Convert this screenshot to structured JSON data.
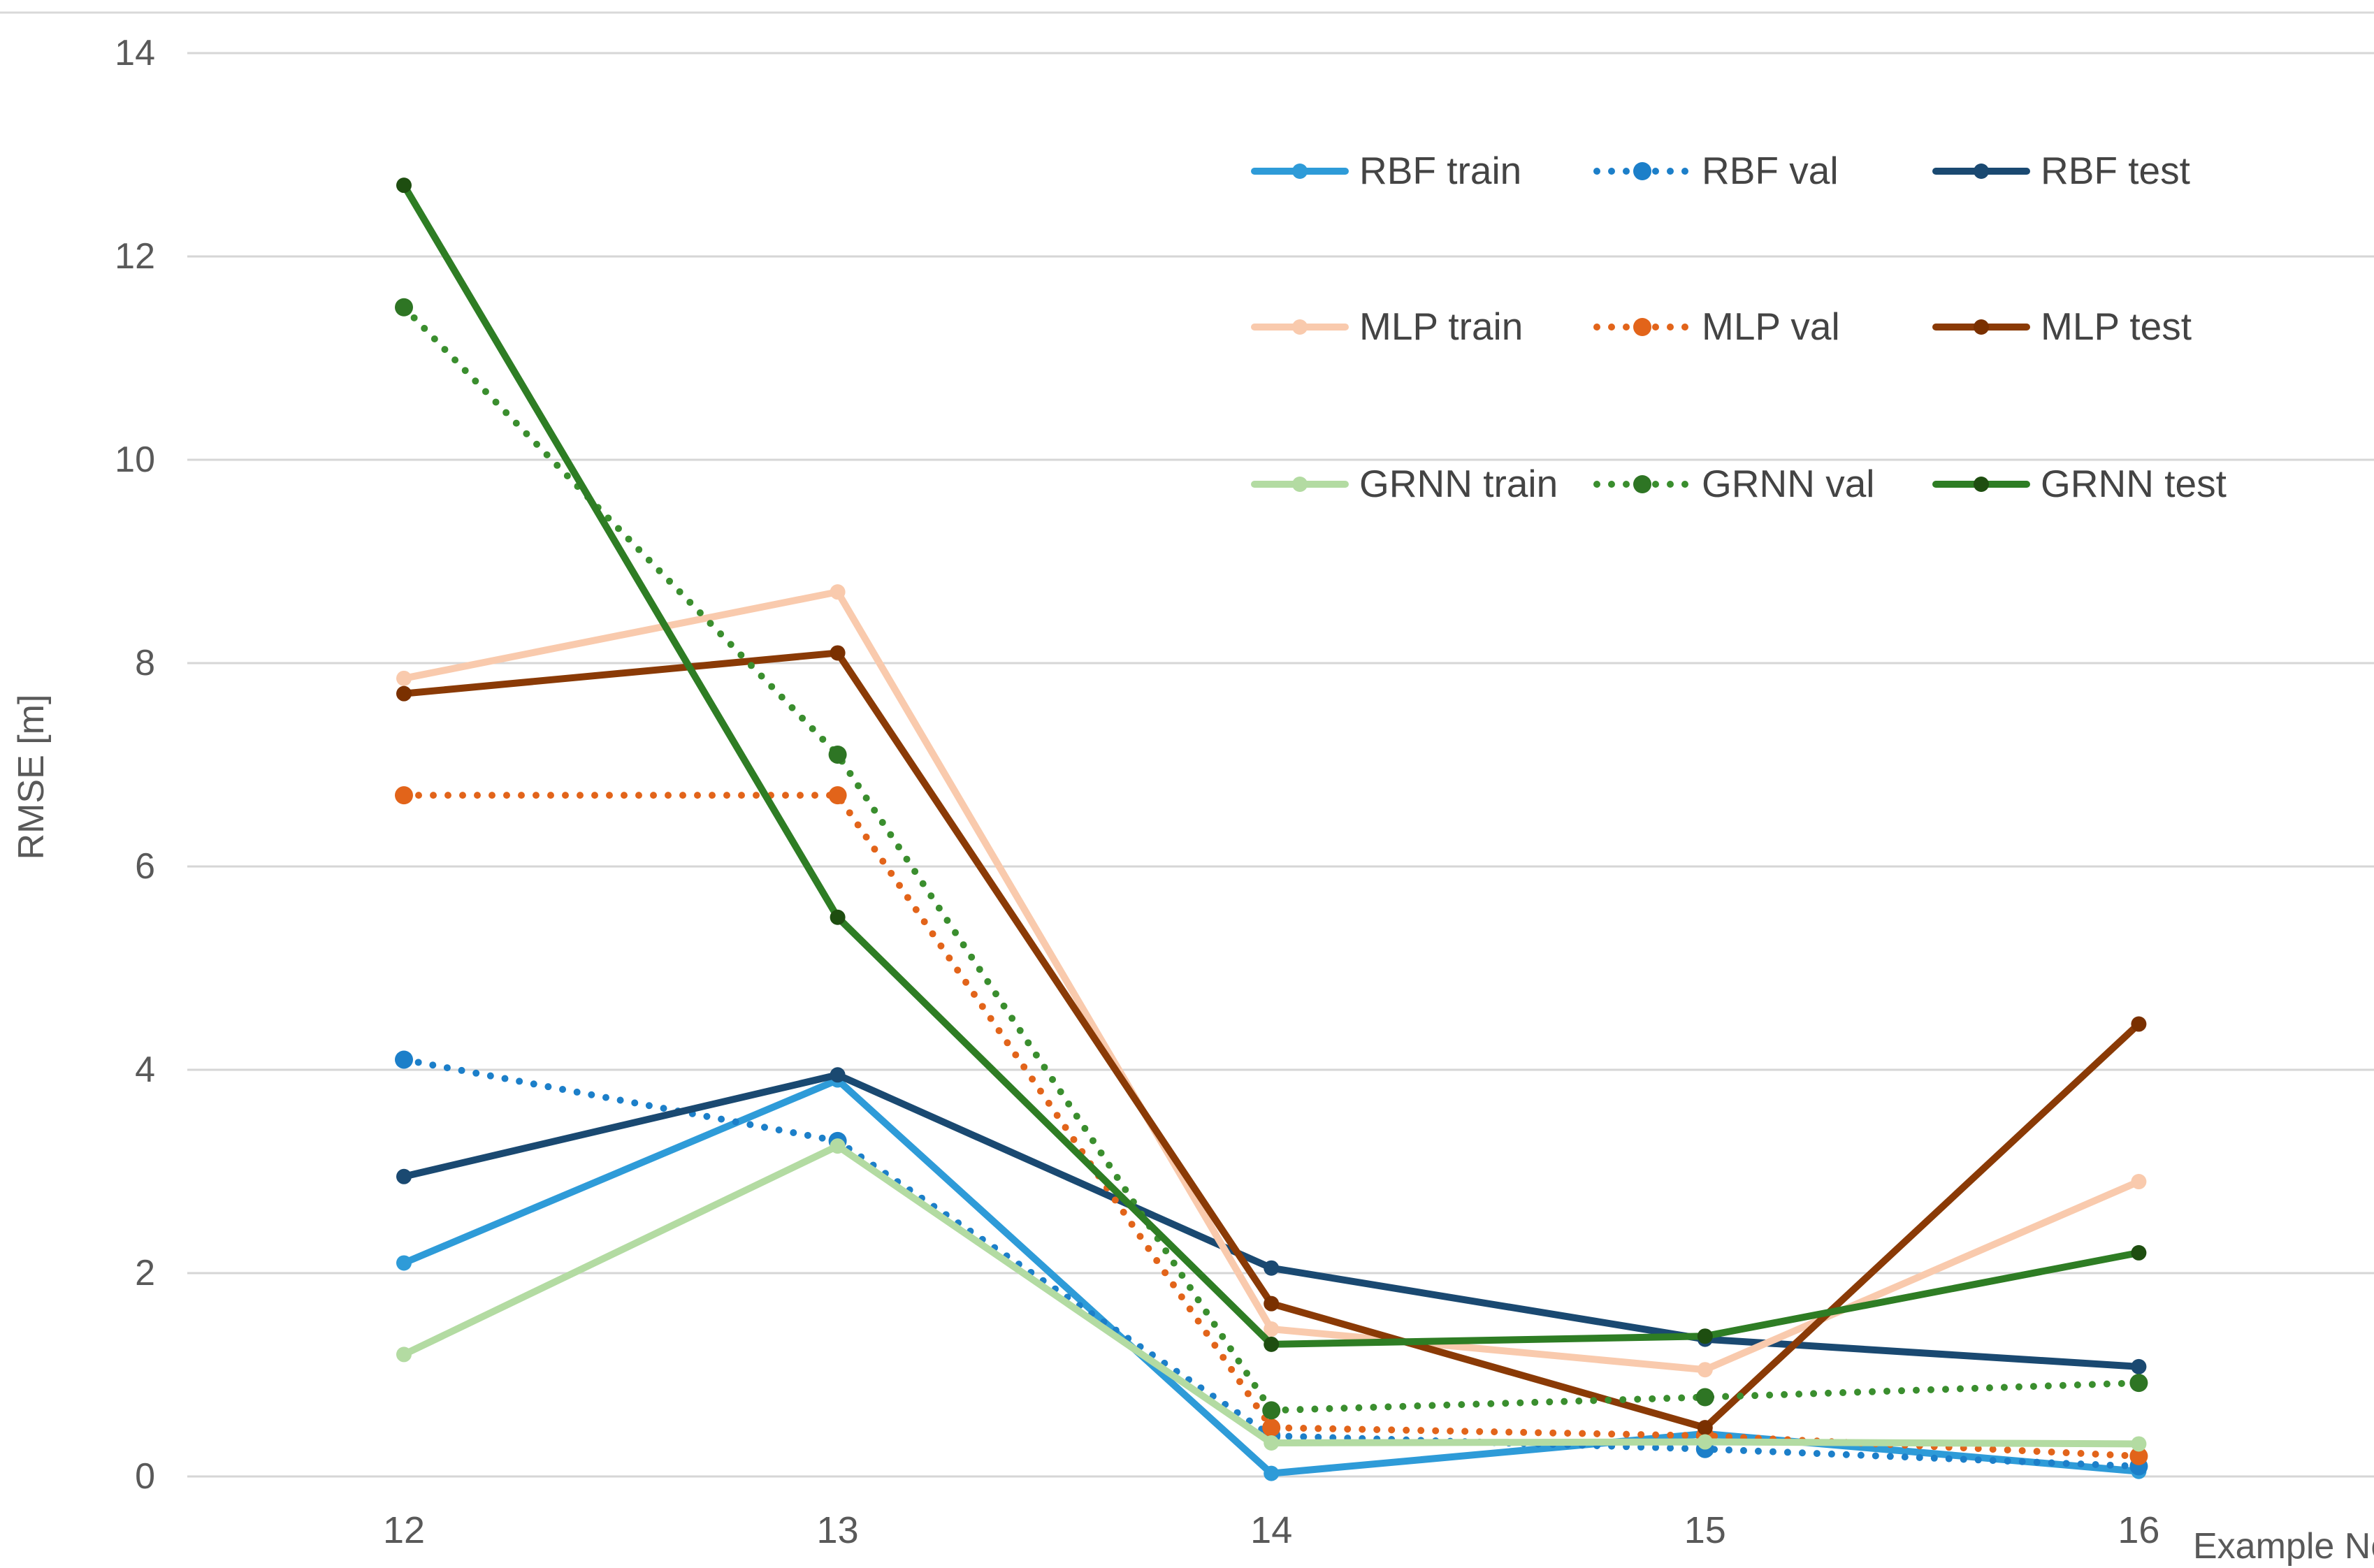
{
  "chart_data": {
    "type": "line",
    "title": "",
    "xlabel": "Example No",
    "ylabel": "RMSE [m]",
    "x": [
      12,
      13,
      14,
      15,
      16
    ],
    "xticks": [
      "12",
      "13",
      "14",
      "15",
      "16"
    ],
    "yticks": [
      "0",
      "2",
      "4",
      "6",
      "8",
      "10",
      "12",
      "14"
    ],
    "ylim": [
      0,
      14
    ],
    "grid": "horizontal",
    "legend_position": "top-right-inside",
    "series": [
      {
        "name": "RBF train",
        "style": "solid",
        "color": "#2E9BD8",
        "marker_color": "#2E9BD8",
        "values": [
          2.1,
          3.9,
          0.03,
          0.42,
          0.05
        ]
      },
      {
        "name": "RBF val",
        "style": "dotted",
        "color": "#1C7FC9",
        "marker_color": "#1C7FC9",
        "values": [
          4.1,
          3.3,
          0.4,
          0.27,
          0.1
        ]
      },
      {
        "name": "RBF test",
        "style": "solid",
        "color": "#1A4971",
        "marker_color": "#1A4971",
        "values": [
          2.95,
          3.95,
          2.05,
          1.35,
          1.08
        ]
      },
      {
        "name": "MLP train",
        "style": "solid",
        "color": "#F9CAAD",
        "marker_color": "#F9CAAD",
        "values": [
          7.85,
          8.7,
          1.45,
          1.05,
          2.9
        ]
      },
      {
        "name": "MLP val",
        "style": "dotted",
        "color": "#E2641A",
        "marker_color": "#E2641A",
        "values": [
          6.7,
          6.7,
          0.48,
          0.4,
          0.2
        ]
      },
      {
        "name": "MLP test",
        "style": "solid",
        "color": "#8A3A06",
        "marker_color": "#7A3000",
        "values": [
          7.7,
          8.1,
          1.7,
          0.48,
          4.45
        ]
      },
      {
        "name": "GRNN train",
        "style": "solid",
        "color": "#B3DBA2",
        "marker_color": "#B3DBA2",
        "values": [
          1.2,
          3.25,
          0.33,
          0.34,
          0.32
        ]
      },
      {
        "name": "GRNN val",
        "style": "dotted",
        "color": "#3A8E2E",
        "marker_color": "#2E7524",
        "values": [
          11.5,
          7.1,
          0.65,
          0.78,
          0.92
        ]
      },
      {
        "name": "GRNN test",
        "style": "solid",
        "color": "#2E7D24",
        "marker_color": "#1E4E10",
        "values": [
          12.7,
          5.5,
          1.3,
          1.38,
          2.2
        ]
      }
    ]
  },
  "colors": {
    "gridline": "#D6D6D6",
    "top_border": "#D9D9D9",
    "axis_text": "#595959",
    "legend_text": "#444444",
    "background": "#FFFFFF"
  }
}
